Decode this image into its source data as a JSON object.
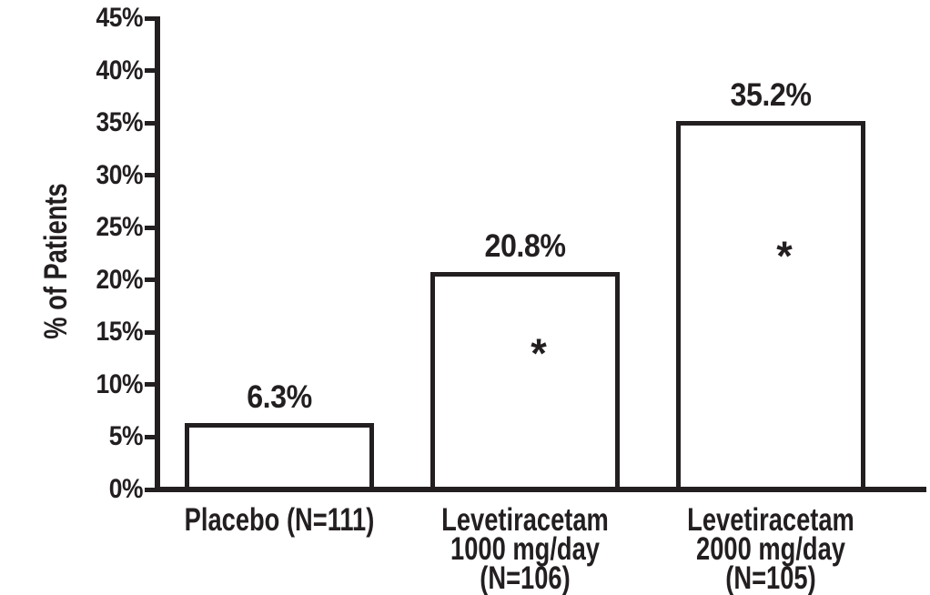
{
  "figure": {
    "background": "#ffffff"
  },
  "chart_data": {
    "type": "bar",
    "title": "",
    "xlabel": "",
    "ylabel": "% of Patients",
    "ylim": [
      0,
      45
    ],
    "y_tick_values": [
      0,
      5,
      10,
      15,
      20,
      25,
      30,
      35,
      40,
      45
    ],
    "y_tick_labels": [
      "0%",
      "5%",
      "10%",
      "15%",
      "20%",
      "25%",
      "30%",
      "35%",
      "40%",
      "45%"
    ],
    "grid": false,
    "legend": "none",
    "bar_fill": "#ffffff",
    "ink_color": "#231f20",
    "significance_symbol": "*",
    "categories": [
      "Placebo (N=111)",
      "Levetiracetam\n1000 mg/day\n(N=106)",
      "Levetiracetam\n2000 mg/day\n(N=105)"
    ],
    "values": [
      6.3,
      20.8,
      35.2
    ],
    "bars": [
      {
        "category": "Placebo (N=111)",
        "value": 6.3,
        "value_label": "6.3%",
        "significant": false
      },
      {
        "category": "Levetiracetam\n1000 mg/day\n(N=106)",
        "value": 20.8,
        "value_label": "20.8%",
        "significant": true
      },
      {
        "category": "Levetiracetam\n2000 mg/day\n(N=105)",
        "value": 35.2,
        "value_label": "35.2%",
        "significant": true
      }
    ]
  }
}
